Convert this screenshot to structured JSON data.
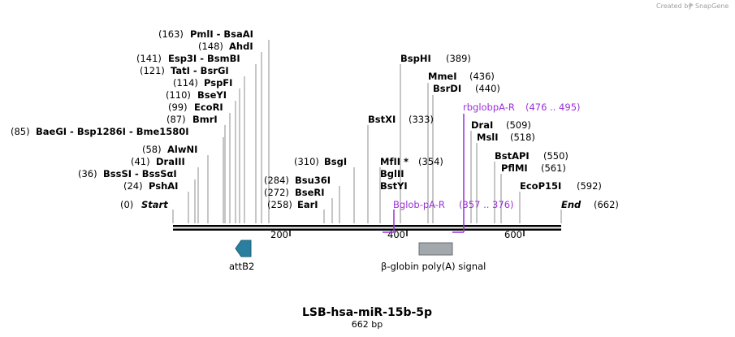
{
  "credit": {
    "prefix": "Created by",
    "brand": "SnapGene"
  },
  "sequence": {
    "name": "LSB-hsa-miR-15b-5p",
    "length_label": "662 bp",
    "length": 662
  },
  "ruler": {
    "ticks": [
      "200",
      "400",
      "600"
    ]
  },
  "ends": {
    "start": {
      "pos": "(0)",
      "label": "Start"
    },
    "end": {
      "pos": "(662)",
      "label": "End"
    }
  },
  "sites": [
    {
      "pos": "(163)",
      "names": "PmlI  -  BsaAI"
    },
    {
      "pos": "(148)",
      "names": "AhdI"
    },
    {
      "pos": "(141)",
      "names": "Esp3I  -  BsmBI"
    },
    {
      "pos": "(121)",
      "names": "TatI  -  BsrGI"
    },
    {
      "pos": "(114)",
      "names": "PspFI"
    },
    {
      "pos": "(110)",
      "names": "BseYI"
    },
    {
      "pos": "(99)",
      "names": "EcoRI"
    },
    {
      "pos": "(87)",
      "names": "BmrI"
    },
    {
      "pos": "(85)",
      "names": "BaeGI  -  Bsp1286I  -  Bme1580I"
    },
    {
      "pos": "(58)",
      "names": "AlwNI"
    },
    {
      "pos": "(41)",
      "names": "DraIII"
    },
    {
      "pos": "(36)",
      "names": "BssSI  -  BssSαI"
    },
    {
      "pos": "(24)",
      "names": "PshAI"
    },
    {
      "pos": "(310)",
      "names": "BsgI"
    },
    {
      "pos": "(284)",
      "names": "Bsu36I"
    },
    {
      "pos": "(272)",
      "names": "BseRI"
    },
    {
      "pos": "(258)",
      "names": "EarI"
    },
    {
      "pos": "(333)",
      "names": "BstXI"
    },
    {
      "pos": "(389)",
      "names": "BspHI"
    },
    {
      "pos": "(354)",
      "names": "MfII *"
    },
    {
      "pos": "",
      "names": "BglII"
    },
    {
      "pos": "",
      "names": "BstYI"
    },
    {
      "pos": "(436)",
      "names": "MmeI"
    },
    {
      "pos": "(440)",
      "names": "BsrDI"
    },
    {
      "pos": "(509)",
      "names": "DraI"
    },
    {
      "pos": "(518)",
      "names": "MslI"
    },
    {
      "pos": "(550)",
      "names": "BstAPI"
    },
    {
      "pos": "(561)",
      "names": "PflMI"
    },
    {
      "pos": "(592)",
      "names": "EcoP15I"
    }
  ],
  "primers": [
    {
      "name": "rbglobpA-R",
      "range": "(476 .. 495)"
    },
    {
      "name": "Bglob-pA-R",
      "range": "(357 .. 376)"
    }
  ],
  "features": [
    {
      "name": "attB2",
      "color": "#2a7f9e"
    },
    {
      "name": "β-globin poly(A) signal",
      "color": "#a3a8ad"
    }
  ],
  "colors": {
    "primer": "#9b30d9",
    "backbone": "#000000"
  }
}
